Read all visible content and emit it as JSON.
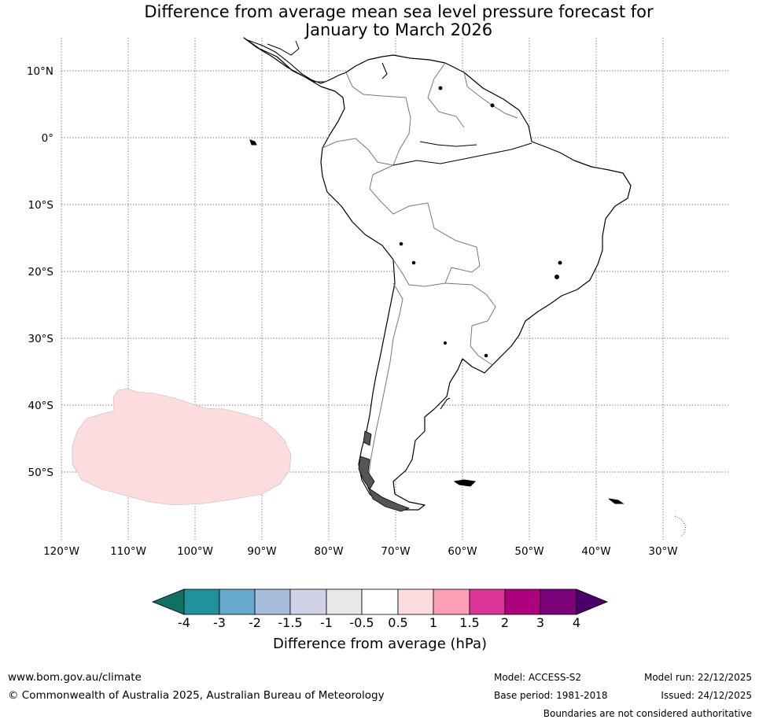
{
  "title": {
    "line1": "Difference from average mean sea level pressure forecast for",
    "line2": "January to March 2026"
  },
  "map": {
    "lat_labels": [
      "10°N",
      "0°",
      "10°S",
      "20°S",
      "30°S",
      "40°S",
      "50°S"
    ],
    "lon_labels": [
      "120°W",
      "110°W",
      "100°W",
      "90°W",
      "80°W",
      "70°W",
      "60°W",
      "50°W",
      "40°W",
      "30°W"
    ]
  },
  "colorbar": {
    "ticks": [
      "-4",
      "-3",
      "-2",
      "-1.5",
      "-1",
      "-0.5",
      "0.5",
      "1",
      "1.5",
      "2",
      "3",
      "4"
    ],
    "colors": [
      "#0e7163",
      "#1f929b",
      "#67a9cf",
      "#a6bddb",
      "#d0d1e6",
      "#e8e8ea",
      "#ffffff",
      "#fcdcdc",
      "#fa9fb5",
      "#dd3497",
      "#ae017e",
      "#7a0177",
      "#49006a"
    ],
    "label": "Difference from average (hPa)"
  },
  "footer": {
    "website": "www.bom.gov.au/climate",
    "copyright": "© Commonwealth of Australia 2025, Australian Bureau of Meteorology",
    "model": "Model: ACCESS-S2",
    "base_period": "Base period: 1981-2018",
    "model_run": "Model run: 22/12/2025",
    "issued": "Issued: 24/12/2025",
    "disclaimer": "Boundaries are not considered authoritative"
  }
}
